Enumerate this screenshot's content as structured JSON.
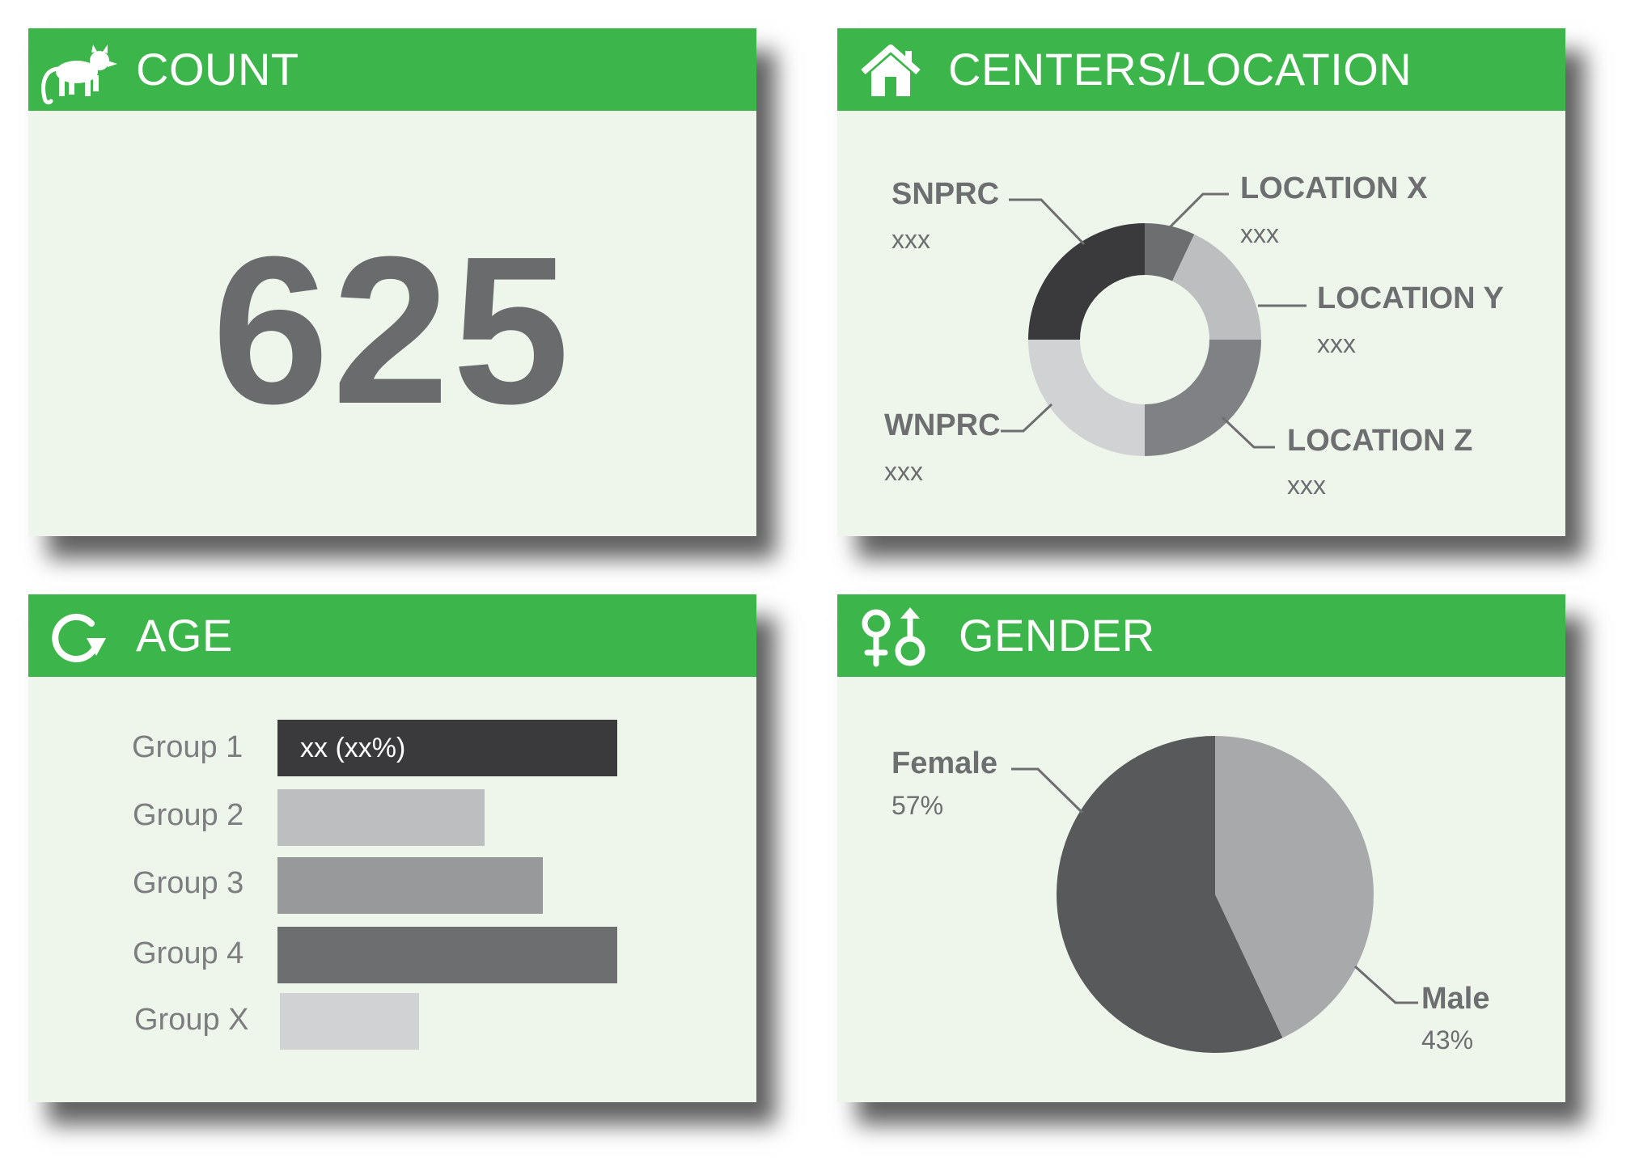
{
  "panels": {
    "count": {
      "title": "COUNT",
      "icon": "monkey-icon",
      "value": "625"
    },
    "centers": {
      "title": "CENTERS/LOCATION",
      "icon": "home-icon"
    },
    "age": {
      "title": "AGE",
      "icon": "refresh-icon",
      "bar_label": "xx (xx%)"
    },
    "gender": {
      "title": "GENDER",
      "icon": "gender-icon"
    }
  },
  "colors": {
    "header_green": "#3cb54a",
    "panel_bg": "#eef6ec",
    "text_gray": "#6d6e70"
  },
  "chart_data": [
    {
      "type": "pie",
      "chart": "centers-donut",
      "donut": true,
      "slices": [
        {
          "label": "LOCATION X",
          "value": 7,
          "display": "xxx",
          "color": "#6d6e70"
        },
        {
          "label": "LOCATION Y",
          "value": 18,
          "display": "xxx",
          "color": "#bdbec0"
        },
        {
          "label": "LOCATION Z",
          "value": 25,
          "display": "xxx",
          "color": "#808184"
        },
        {
          "label": "WNPRC",
          "value": 25,
          "display": "xxx",
          "color": "#d1d2d4"
        },
        {
          "label": "SNPRC",
          "value": 25,
          "display": "xxx",
          "color": "#3a3a3c"
        }
      ]
    },
    {
      "type": "bar",
      "chart": "age-bars",
      "orientation": "horizontal",
      "categories": [
        "Group 1",
        "Group 2",
        "Group 3",
        "Group 4",
        "Group X"
      ],
      "values": [
        100,
        61,
        78,
        100,
        41
      ],
      "colors": [
        "#3a3a3c",
        "#bdbec0",
        "#98999b",
        "#6d6e70",
        "#d1d2d4"
      ],
      "xlim": [
        0,
        100
      ]
    },
    {
      "type": "pie",
      "chart": "gender-pie",
      "slices": [
        {
          "label": "Female",
          "value": 57,
          "display": "57%",
          "color": "#58595b"
        },
        {
          "label": "Male",
          "value": 43,
          "display": "43%",
          "color": "#a7a9ab"
        }
      ]
    }
  ]
}
